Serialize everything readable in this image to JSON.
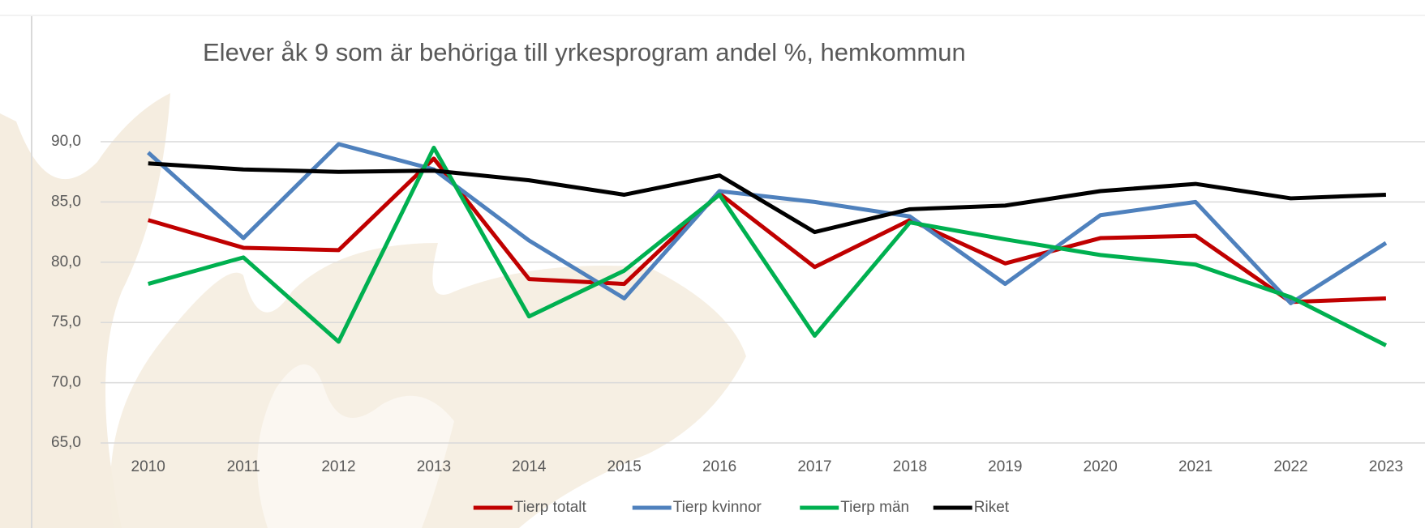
{
  "chart_data": {
    "type": "line",
    "title": "Elever åk 9 som är behöriga till yrkesprogram andel %, hemkommun",
    "categories": [
      "2010",
      "2011",
      "2012",
      "2013",
      "2014",
      "2015",
      "2016",
      "2017",
      "2018",
      "2019",
      "2020",
      "2021",
      "2022",
      "2023"
    ],
    "series": [
      {
        "name": "Tierp totalt",
        "color": "#c00000",
        "values": [
          83.5,
          81.2,
          81.0,
          88.6,
          78.6,
          78.2,
          85.7,
          79.6,
          83.5,
          79.9,
          82.0,
          82.2,
          76.7,
          77.0
        ]
      },
      {
        "name": "Tierp kvinnor",
        "color": "#4f81bd",
        "values": [
          89.1,
          82.0,
          89.8,
          87.7,
          81.8,
          77.0,
          85.9,
          85.0,
          83.8,
          78.2,
          83.9,
          85.0,
          76.6,
          81.6
        ]
      },
      {
        "name": "Tierp män",
        "color": "#00b050",
        "values": [
          78.2,
          80.4,
          73.4,
          89.5,
          75.5,
          79.3,
          85.6,
          73.9,
          83.3,
          81.9,
          80.6,
          79.8,
          77.1,
          73.1
        ]
      },
      {
        "name": "Riket",
        "color": "#000000",
        "values": [
          88.2,
          87.7,
          87.5,
          87.6,
          86.8,
          85.6,
          87.2,
          82.5,
          84.4,
          84.7,
          85.9,
          86.5,
          85.3,
          85.6
        ]
      }
    ],
    "ylim": [
      65,
      90
    ],
    "yticks": [
      {
        "value": 65,
        "label": "65,0"
      },
      {
        "value": 70,
        "label": "70,0"
      },
      {
        "value": 75,
        "label": "75,0"
      },
      {
        "value": 80,
        "label": "80,0"
      },
      {
        "value": 85,
        "label": "85,0"
      },
      {
        "value": 90,
        "label": "90,0"
      }
    ],
    "grid": true,
    "legend": "bottom"
  }
}
